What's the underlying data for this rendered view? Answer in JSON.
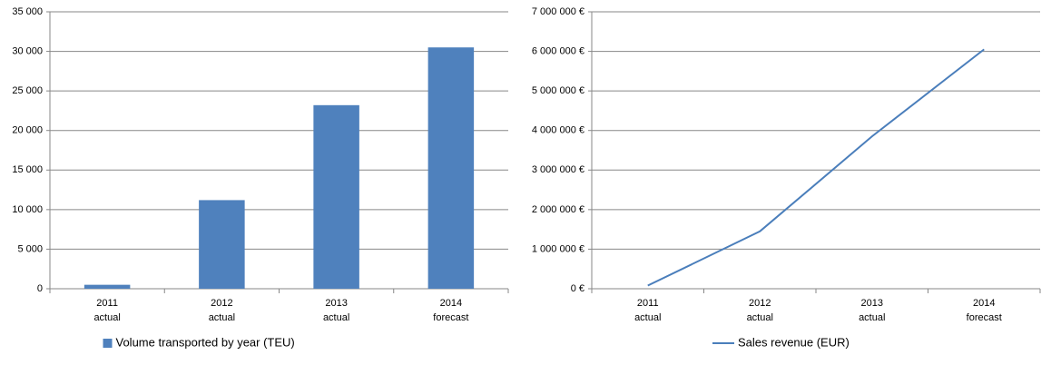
{
  "chart_data": [
    {
      "type": "bar",
      "categories": [
        [
          "2011",
          "actual"
        ],
        [
          "2012",
          "actual"
        ],
        [
          "2013",
          "actual"
        ],
        [
          "2014",
          "forecast"
        ]
      ],
      "series": [
        {
          "name": "Volume transported by year (TEU)",
          "color": "#4f81bd",
          "values": [
            500,
            11200,
            23200,
            30500
          ]
        }
      ],
      "ylim": [
        0,
        35000
      ],
      "yticks": [
        0,
        {
          "value": 5000,
          "label": "5 000"
        },
        {
          "value": 10000,
          "label": "10 000"
        },
        {
          "value": 15000,
          "label": "15 000"
        },
        {
          "value": 20000,
          "label": "20 000"
        },
        {
          "value": 25000,
          "label": "25 000"
        },
        {
          "value": 30000,
          "label": "30 000"
        },
        {
          "value": 35000,
          "label": "35 000"
        }
      ],
      "grid": true,
      "legend": "bottom"
    },
    {
      "type": "line",
      "categories": [
        [
          "2011",
          "actual"
        ],
        [
          "2012",
          "actual"
        ],
        [
          "2013",
          "actual"
        ],
        [
          "2014",
          "forecast"
        ]
      ],
      "series": [
        {
          "name": "Sales revenue (EUR)",
          "color": "#4a7ebb",
          "values": [
            80000,
            1450000,
            3850000,
            6050000
          ]
        }
      ],
      "ylim": [
        0,
        7000000
      ],
      "yticks": [
        {
          "value": 0,
          "label": "0 €"
        },
        {
          "value": 1000000,
          "label": "1 000 000 €"
        },
        {
          "value": 2000000,
          "label": "2 000 000 €"
        },
        {
          "value": 3000000,
          "label": "3 000 000 €"
        },
        {
          "value": 4000000,
          "label": "4 000 000 €"
        },
        {
          "value": 5000000,
          "label": "5 000 000 €"
        },
        {
          "value": 6000000,
          "label": "6 000 000 €"
        },
        {
          "value": 7000000,
          "label": "7 000 000 €"
        }
      ],
      "grid": true,
      "legend": "bottom"
    }
  ]
}
